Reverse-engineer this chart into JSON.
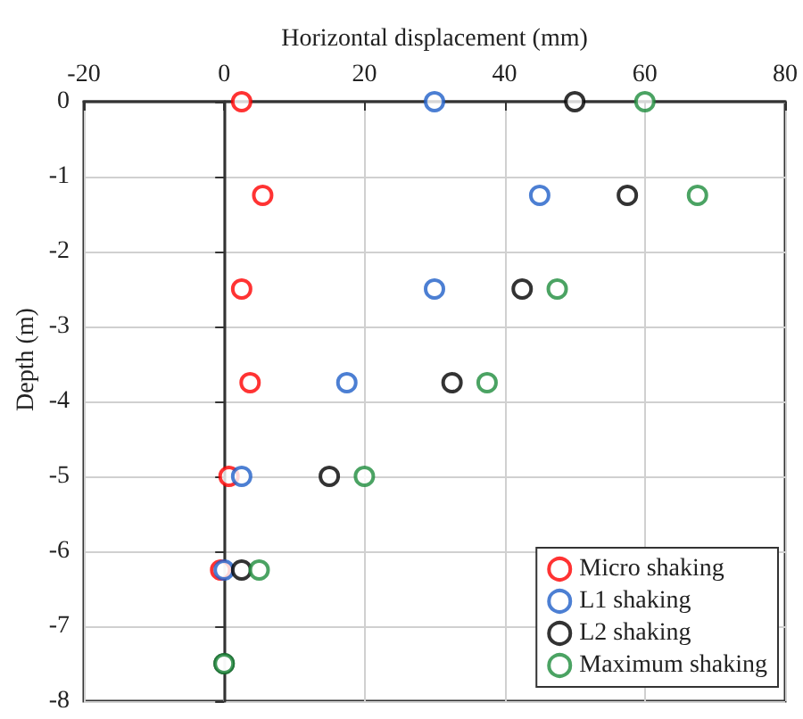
{
  "chart_data": {
    "type": "scatter",
    "xlabel": "Horizontal displacement (mm)",
    "ylabel": "Depth (m)",
    "xlim": [
      -20,
      80
    ],
    "xticks": [
      -20,
      0,
      20,
      40,
      60,
      80
    ],
    "ylim": [
      -8,
      0
    ],
    "yticks": [
      -8,
      -7,
      -6,
      -5,
      -4,
      -3,
      -2,
      -1,
      0
    ],
    "grid": true,
    "legend": "bottom right",
    "marker": "circle",
    "series": [
      {
        "name": "Micro shaking",
        "color": "#ff0000",
        "x": [
          2.5,
          5.5,
          2.5,
          3.7,
          0.7,
          -0.5,
          null
        ],
        "values": [
          0,
          -1.25,
          -2.5,
          -3.75,
          -5,
          -6.25,
          null
        ]
      },
      {
        "name": "L1 shaking",
        "color": "#1f5fc8",
        "x": [
          30,
          45,
          30,
          17.5,
          2.5,
          0,
          null
        ],
        "values": [
          0,
          -1.25,
          -2.5,
          -3.75,
          -5,
          -6.25,
          null
        ]
      },
      {
        "name": "L2 shaking",
        "color": "#000000",
        "x": [
          50,
          57.5,
          42.5,
          32.5,
          15,
          2.5,
          0
        ],
        "values": [
          0,
          -1.25,
          -2.5,
          -3.75,
          -5,
          -6.25,
          -7.5
        ]
      },
      {
        "name": "Maximum shaking",
        "color": "#1e8c3c",
        "x": [
          60,
          67.5,
          47.5,
          37.5,
          20,
          5,
          0
        ],
        "values": [
          0,
          -1.25,
          -2.5,
          -3.75,
          -5,
          -6.25,
          -7.5
        ]
      }
    ]
  }
}
